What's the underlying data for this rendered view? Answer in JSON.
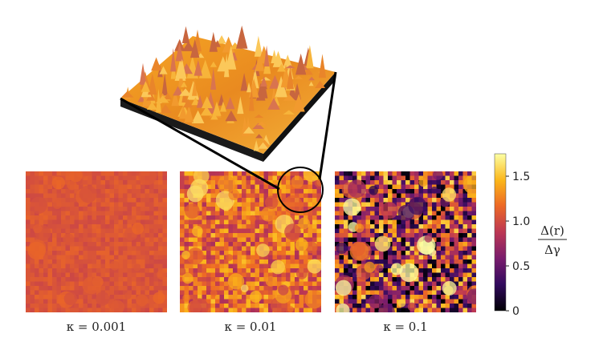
{
  "panels": [
    {
      "kappa_label": "κ = 0.001",
      "kappa": 0.001,
      "mean_gap": 1.05,
      "spread": 0.08
    },
    {
      "kappa_label": "κ = 0.01",
      "kappa": 0.01,
      "mean_gap": 1.15,
      "spread": 0.35
    },
    {
      "kappa_label": "κ = 0.1",
      "kappa": 0.1,
      "mean_gap": 0.75,
      "spread": 0.85
    }
  ],
  "colorbar": {
    "label_numerator": "Δ(r)",
    "label_denominator": "Δγ",
    "ticks": [
      "0",
      "0.5",
      "1.0",
      "1.5"
    ],
    "tick_values": [
      0,
      0.5,
      1.0,
      1.5
    ],
    "range": [
      0,
      1.75
    ],
    "colormap": [
      "#000004",
      "#320a5e",
      "#781c6d",
      "#bc3754",
      "#ed6925",
      "#fbb61a",
      "#fcffa4"
    ]
  },
  "inset_3d": {
    "description_icon": "surface-3d",
    "source_panel_index": 1
  }
}
